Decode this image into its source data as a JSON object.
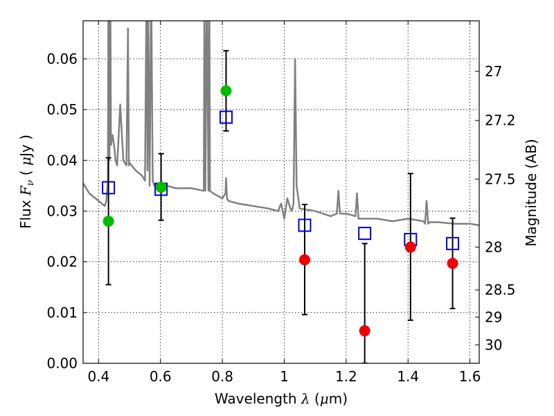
{
  "chart_data": {
    "type": "scatter",
    "title": "",
    "xlabel": "Wavelength  λ (μm)",
    "ylabel": "Flux  F_ν  ( μJy )",
    "ylabel_right": "Magnitude (AB)",
    "xlim": [
      0.35,
      1.63
    ],
    "ylim": [
      0.0,
      0.0675
    ],
    "grid": true,
    "legend": "none",
    "x_ticks": [
      0.4,
      0.6,
      0.8,
      1.0,
      1.2,
      1.4,
      1.6
    ],
    "x_tick_labels": [
      "0.4",
      "0.6",
      "0.8",
      "1",
      "1.2",
      "1.4",
      "1.6"
    ],
    "y_ticks": [
      0.0,
      0.01,
      0.02,
      0.03,
      0.04,
      0.05,
      0.06
    ],
    "y_tick_labels": [
      "0.00",
      "0.01",
      "0.02",
      "0.03",
      "0.04",
      "0.05",
      "0.06"
    ],
    "right_ticks": [
      {
        "label": "27",
        "mag": 27.0
      },
      {
        "label": "27.2",
        "mag": 27.2
      },
      {
        "label": "27.5",
        "mag": 27.5
      },
      {
        "label": "28",
        "mag": 28.0
      },
      {
        "label": "28.5",
        "mag": 28.5
      },
      {
        "label": "29",
        "mag": 29.0
      },
      {
        "label": "30",
        "mag": 30.0
      }
    ],
    "colors": {
      "model": "#808080",
      "measured_green": "#00bb00",
      "measured_red": "#ee0000",
      "model_box": "#0000cc",
      "errorbar": "#000000",
      "grid": "#000000"
    },
    "series": [
      {
        "style": "line",
        "color": "#808080",
        "x": [
          0.35,
          0.37,
          0.39,
          0.41,
          0.42,
          0.425,
          0.43,
          0.432,
          0.435,
          0.438,
          0.44,
          0.445,
          0.45,
          0.455,
          0.46,
          0.47,
          0.48,
          0.49,
          0.495,
          0.498,
          0.5,
          0.52,
          0.54,
          0.55,
          0.555,
          0.558,
          0.56,
          0.565,
          0.57,
          0.575,
          0.58,
          0.6,
          0.62,
          0.65,
          0.7,
          0.74,
          0.742,
          0.745,
          0.75,
          0.755,
          0.758,
          0.76,
          0.77,
          0.8,
          0.81,
          0.812,
          0.815,
          0.82,
          0.85,
          0.9,
          0.95,
          0.98,
          0.99,
          1.0,
          1.01,
          1.02,
          1.025,
          1.03,
          1.035,
          1.04,
          1.05,
          1.1,
          1.15,
          1.17,
          1.175,
          1.18,
          1.2,
          1.23,
          1.235,
          1.24,
          1.25,
          1.3,
          1.35,
          1.4,
          1.45,
          1.455,
          1.46,
          1.465,
          1.47,
          1.5,
          1.55,
          1.6,
          1.63
        ],
        "y": [
          0.0355,
          0.0335,
          0.0325,
          0.0315,
          0.031,
          0.032,
          0.036,
          0.075,
          0.04,
          0.075,
          0.043,
          0.045,
          0.043,
          0.04,
          0.039,
          0.051,
          0.04,
          0.039,
          0.066,
          0.039,
          0.0395,
          0.038,
          0.037,
          0.036,
          0.075,
          0.038,
          0.075,
          0.035,
          0.075,
          0.036,
          0.035,
          0.0355,
          0.035,
          0.0345,
          0.0345,
          0.034,
          0.075,
          0.034,
          0.075,
          0.034,
          0.075,
          0.034,
          0.0335,
          0.0325,
          0.0335,
          0.0365,
          0.0325,
          0.032,
          0.0315,
          0.031,
          0.0305,
          0.03,
          0.0315,
          0.0285,
          0.0325,
          0.0305,
          0.03,
          0.0315,
          0.06,
          0.035,
          0.0305,
          0.03,
          0.029,
          0.0295,
          0.034,
          0.0295,
          0.0295,
          0.029,
          0.0335,
          0.0285,
          0.0285,
          0.0285,
          0.028,
          0.0285,
          0.028,
          0.0275,
          0.032,
          0.0275,
          0.0278,
          0.0278,
          0.0275,
          0.0275,
          0.0272
        ]
      },
      {
        "style": "points",
        "marker": "circle",
        "color": "#00bb00",
        "x": [
          0.432,
          0.602,
          0.812
        ],
        "y": [
          0.028,
          0.0347,
          0.0537
        ]
      },
      {
        "style": "points",
        "marker": "circle",
        "color": "#ee0000",
        "x": [
          1.066,
          1.26,
          1.408,
          1.544
        ],
        "y": [
          0.0204,
          0.0064,
          0.0229,
          0.0197
        ]
      },
      {
        "style": "points",
        "marker": "square",
        "color": "#0000cc",
        "x": [
          0.432,
          0.602,
          0.812,
          1.066,
          1.26,
          1.408,
          1.544
        ],
        "y": [
          0.0346,
          0.0343,
          0.0485,
          0.0272,
          0.0256,
          0.0244,
          0.0236
        ]
      }
    ],
    "errorbars": {
      "x": [
        0.432,
        0.602,
        0.812,
        1.066,
        1.26,
        1.408,
        1.544
      ],
      "y_low": [
        0.0155,
        0.0282,
        0.0458,
        0.0096,
        0.0,
        0.0085,
        0.0108
      ],
      "y_high": [
        0.0405,
        0.0413,
        0.0616,
        0.0313,
        0.0236,
        0.0374,
        0.0286
      ]
    }
  }
}
